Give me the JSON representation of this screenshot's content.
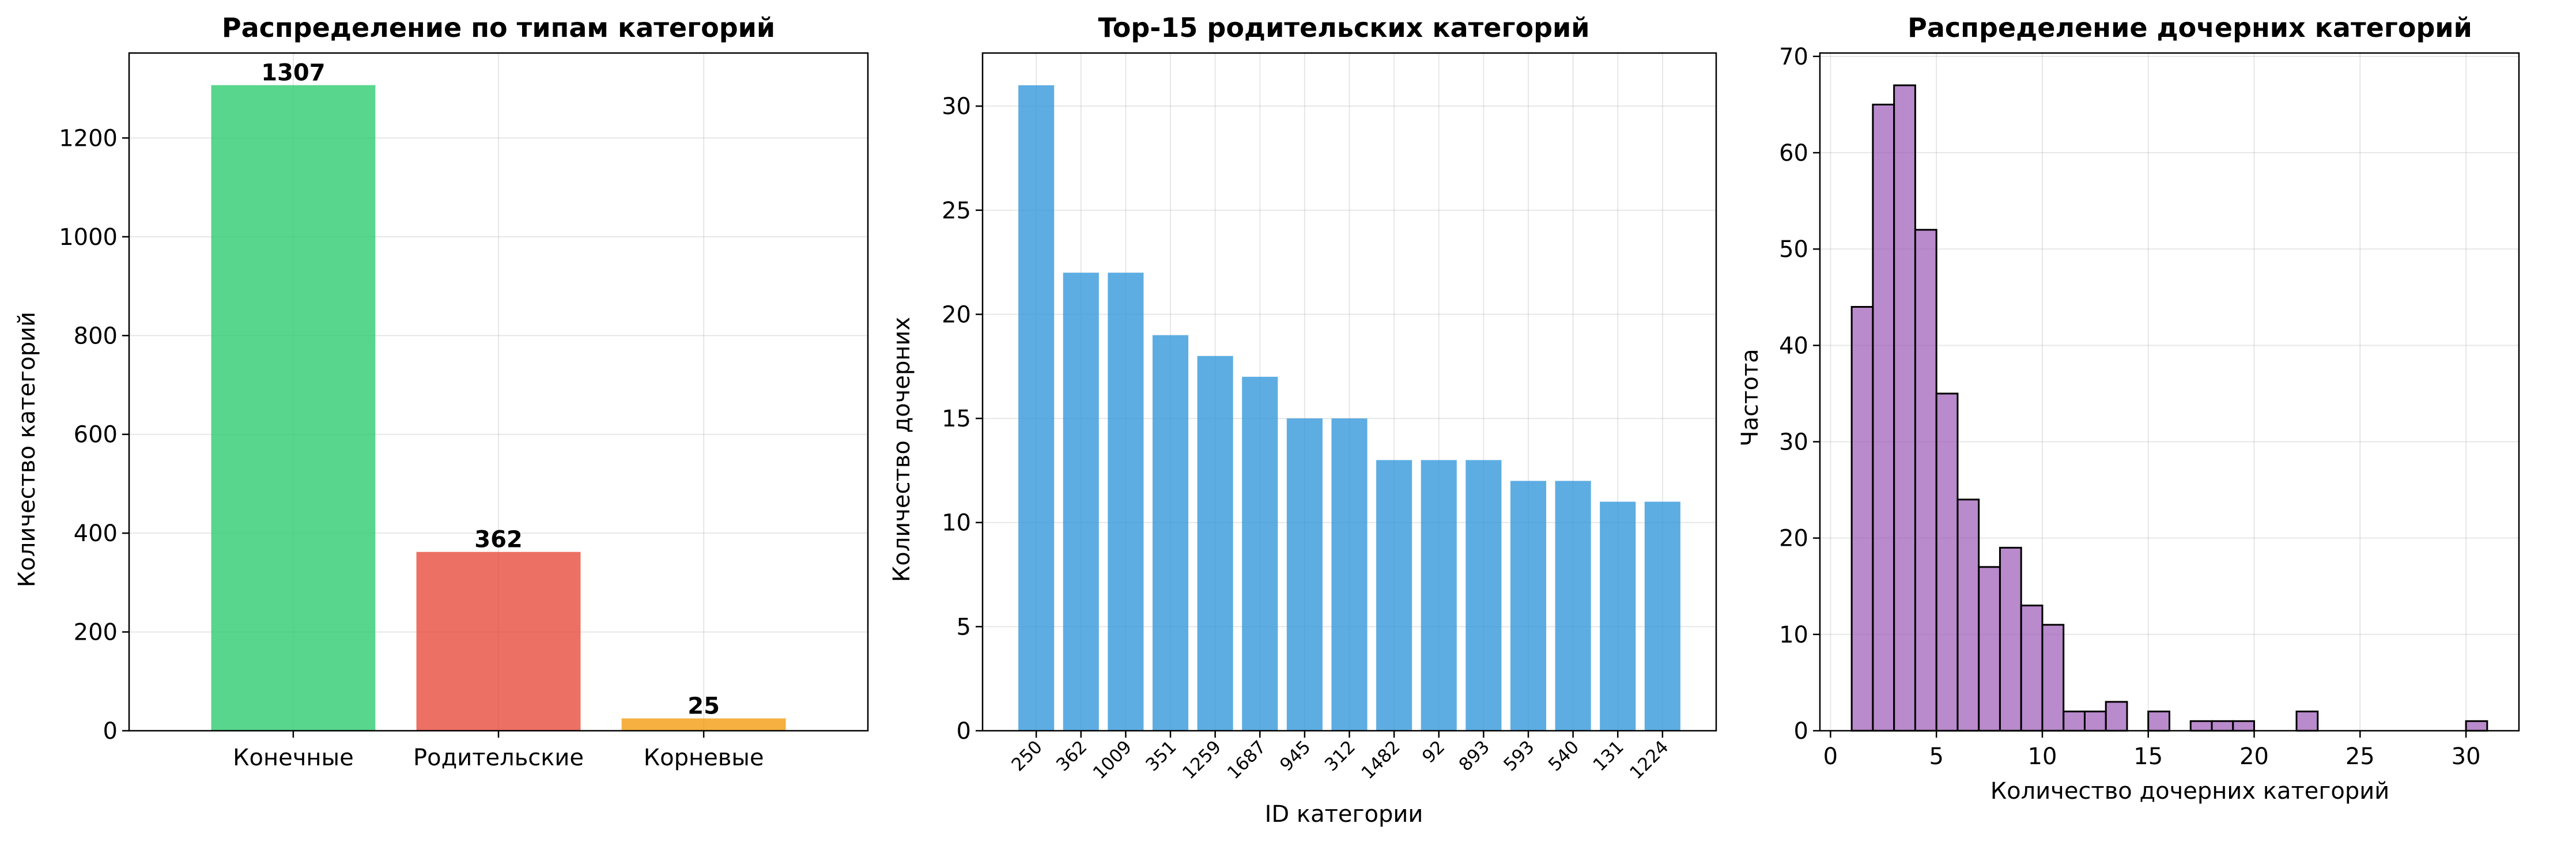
{
  "chart_data": [
    {
      "type": "bar",
      "title": "Распределение по типам категорий",
      "xlabel": "",
      "ylabel": "Количество категорий",
      "categories": [
        "Конечные",
        "Родительские",
        "Корневые"
      ],
      "values": [
        1307,
        362,
        25
      ],
      "data_labels": [
        "1307",
        "362",
        "25"
      ],
      "colors": [
        "#2ecc71",
        "#e74c3c",
        "#f39c12"
      ],
      "ylim": [
        0,
        1372
      ],
      "yticks": [
        0,
        200,
        400,
        600,
        800,
        1000,
        1200
      ],
      "grid": true
    },
    {
      "type": "bar",
      "title": "Top-15 родительских категорий",
      "xlabel": "ID категории",
      "ylabel": "Количество дочерних",
      "categories": [
        "250",
        "362",
        "1009",
        "351",
        "1259",
        "1687",
        "945",
        "312",
        "1482",
        "92",
        "893",
        "593",
        "540",
        "131",
        "1224"
      ],
      "values": [
        31,
        22,
        22,
        19,
        18,
        17,
        15,
        15,
        13,
        13,
        13,
        12,
        12,
        11,
        11
      ],
      "color": "#3498db",
      "ylim": [
        0,
        32.55
      ],
      "yticks": [
        0,
        5,
        10,
        15,
        20,
        25,
        30
      ],
      "grid": true
    },
    {
      "type": "histogram",
      "title": "Распределение дочерних категорий",
      "xlabel": "Количество дочерних категорий",
      "ylabel": "Частота",
      "bin_start": 1,
      "bin_width": 1,
      "counts": [
        44,
        65,
        67,
        52,
        35,
        24,
        17,
        19,
        13,
        11,
        2,
        2,
        3,
        0,
        2,
        0,
        1,
        1,
        1,
        0,
        0,
        2,
        0,
        0,
        0,
        0,
        0,
        0,
        0,
        1
      ],
      "color": "#9b59b6",
      "edgecolor": "#000000",
      "xlim": [
        -0.5,
        32.5
      ],
      "ylim": [
        0,
        70.35
      ],
      "xticks": [
        0,
        5,
        10,
        15,
        20,
        25,
        30
      ],
      "yticks": [
        0,
        10,
        20,
        30,
        40,
        50,
        60,
        70
      ],
      "grid": true
    }
  ]
}
